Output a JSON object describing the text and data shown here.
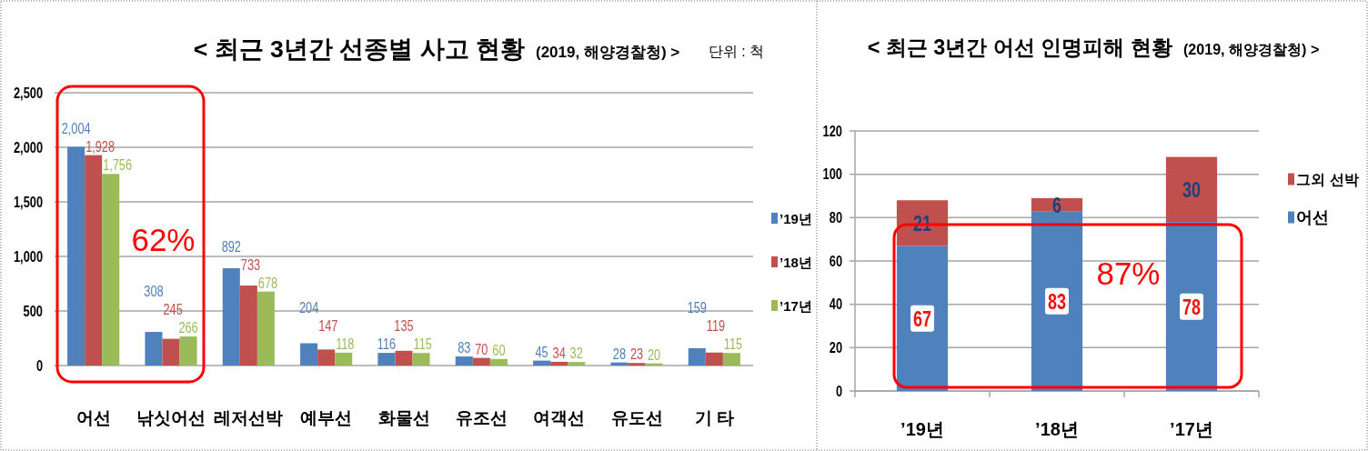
{
  "chart_data": [
    {
      "type": "bar",
      "title": "< 최근 3년간 선종별 사고 현황",
      "subtitle": "(2019, 해양경찰청) >",
      "annotations": [
        "단위 : 척",
        "62%"
      ],
      "categories": [
        "어선",
        "낚싯어선",
        "레저선박",
        "예부선",
        "화물선",
        "유조선",
        "여객선",
        "유도선",
        "기 타"
      ],
      "series": [
        {
          "name": "’19년",
          "color": "#4f81bd",
          "values": [
            2004,
            308,
            892,
            204,
            116,
            83,
            45,
            28,
            159
          ],
          "value_labels": [
            "2,004",
            "308",
            "892",
            "204",
            "116",
            "83",
            "45",
            "28",
            "159"
          ]
        },
        {
          "name": "’18년",
          "color": "#c0504d",
          "values": [
            1928,
            245,
            733,
            147,
            135,
            70,
            34,
            23,
            119
          ],
          "value_labels": [
            "1,928",
            "245",
            "733",
            "147",
            "135",
            "70",
            "34",
            "23",
            "119"
          ]
        },
        {
          "name": "’17년",
          "color": "#9bbb59",
          "values": [
            1756,
            266,
            678,
            118,
            115,
            60,
            32,
            20,
            115
          ],
          "value_labels": [
            "1,756",
            "266",
            "678",
            "118",
            "115",
            "60",
            "32",
            "20",
            "115"
          ]
        }
      ],
      "ylim": [
        0,
        2500
      ],
      "yticks": [
        0,
        500,
        {
          "value": 1000,
          "label": "1,000"
        },
        {
          "value": 1500,
          "label": "1,500"
        },
        {
          "value": 2000,
          "label": "2,000"
        },
        {
          "value": 2500,
          "label": "2,500"
        }
      ],
      "grid": "y",
      "legend": "right"
    },
    {
      "type": "bar",
      "stacked": true,
      "title": "< 최근 3년간 어선 인명피해 현황",
      "subtitle": "(2019, 해양경찰청) >",
      "annotations": [
        "87%"
      ],
      "categories": [
        "’19년",
        "’18년",
        "’17년"
      ],
      "series": [
        {
          "name": "어선",
          "color": "#4f81bd",
          "values": [
            67,
            83,
            78
          ]
        },
        {
          "name": "그외 선박",
          "color": "#c0504d",
          "values": [
            21,
            6,
            30
          ]
        }
      ],
      "ylim": [
        0,
        120
      ],
      "yticks": [
        0,
        20,
        40,
        60,
        80,
        100,
        120
      ],
      "grid": "y",
      "legend": "right",
      "data_labels": true
    }
  ]
}
